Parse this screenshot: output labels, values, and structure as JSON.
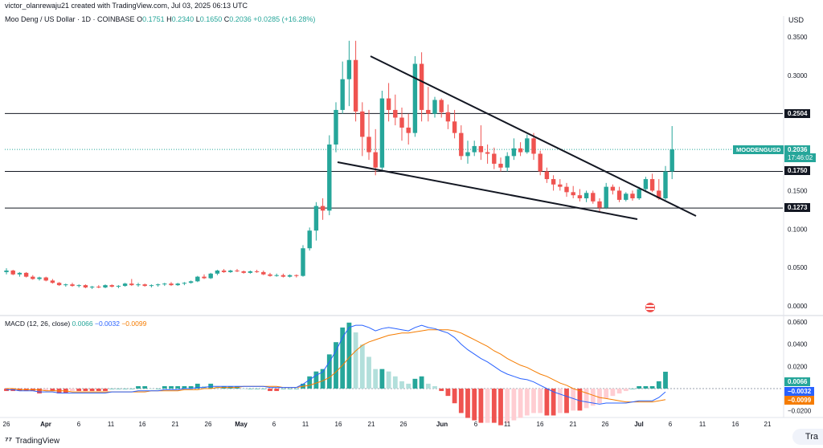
{
  "header": {
    "text": "victor_olanrewaju21 created with TradingView.com, Jul 03, 2025 06:13 UTC"
  },
  "legend": {
    "title": "Moo Deng / US Dollar · 1D · COINBASE",
    "o_label": "O",
    "o": "0.1751",
    "h_label": "H",
    "h": "0.2340",
    "l_label": "L",
    "l": "0.1650",
    "c_label": "C",
    "c": "0.2036",
    "change": "+0.0285 (+16.28%)"
  },
  "currency": "USD",
  "macd_legend": {
    "label": "MACD (12, 26, close)",
    "hist": "0.0066",
    "macd": "−0.0032",
    "signal": "−0.0099"
  },
  "footer": {
    "brand": "TradingView",
    "button": "Tra"
  },
  "tags": {
    "symbol": "MOODENGUSD",
    "price": "0.2036",
    "countdown": "17:46:02",
    "level1": "0.2504",
    "level2": "0.1750",
    "level3": "0.1273",
    "hist": "0.0066",
    "macd": "−0.0032",
    "signal": "−0.0099"
  },
  "colors": {
    "up": "#26a69a",
    "down": "#ef5350",
    "macd": "#2962ff",
    "signal": "#f57c00"
  },
  "chart_data": [
    {
      "type": "candlestick",
      "title": "Moo Deng / US Dollar · 1D · COINBASE",
      "ylabel": "USD",
      "ylim": [
        -0.02,
        0.36
      ],
      "yticks": [
        "0.3500",
        "0.3000",
        "0.2500",
        "0.2000",
        "0.1500",
        "0.1000",
        "0.0500",
        "0.0000"
      ],
      "xticks": [
        "26",
        "Apr",
        "6",
        "11",
        "16",
        "21",
        "26",
        "May",
        "6",
        "11",
        "16",
        "21",
        "26",
        "Jun",
        "6",
        "11",
        "16",
        "21",
        "26",
        "Jul",
        "6",
        "11",
        "16",
        "21"
      ],
      "horizontal_levels": [
        0.2504,
        0.175,
        0.1273
      ],
      "trendlines": [
        {
          "from": [
            "May 18",
            0.325
          ],
          "to": [
            "Jul 7",
            0.115
          ]
        },
        {
          "from": [
            "May 16",
            0.18
          ],
          "to": [
            "Jul 1",
            0.112
          ]
        }
      ],
      "last": {
        "open": 0.1751,
        "high": 0.234,
        "low": 0.165,
        "close": 0.2036,
        "change": 0.0285,
        "change_pct": 16.28
      },
      "candles": [
        {
          "o": 0.044,
          "h": 0.049,
          "l": 0.041,
          "c": 0.046
        },
        {
          "o": 0.046,
          "h": 0.047,
          "l": 0.04,
          "c": 0.041
        },
        {
          "o": 0.041,
          "h": 0.044,
          "l": 0.038,
          "c": 0.043
        },
        {
          "o": 0.043,
          "h": 0.044,
          "l": 0.037,
          "c": 0.038
        },
        {
          "o": 0.038,
          "h": 0.04,
          "l": 0.034,
          "c": 0.035
        },
        {
          "o": 0.035,
          "h": 0.038,
          "l": 0.033,
          "c": 0.037
        },
        {
          "o": 0.037,
          "h": 0.038,
          "l": 0.032,
          "c": 0.033
        },
        {
          "o": 0.033,
          "h": 0.035,
          "l": 0.029,
          "c": 0.03
        },
        {
          "o": 0.03,
          "h": 0.031,
          "l": 0.026,
          "c": 0.027
        },
        {
          "o": 0.027,
          "h": 0.029,
          "l": 0.025,
          "c": 0.028
        },
        {
          "o": 0.028,
          "h": 0.03,
          "l": 0.025,
          "c": 0.026
        },
        {
          "o": 0.026,
          "h": 0.028,
          "l": 0.024,
          "c": 0.027
        },
        {
          "o": 0.027,
          "h": 0.028,
          "l": 0.023,
          "c": 0.024
        },
        {
          "o": 0.024,
          "h": 0.026,
          "l": 0.022,
          "c": 0.025
        },
        {
          "o": 0.025,
          "h": 0.027,
          "l": 0.023,
          "c": 0.024
        },
        {
          "o": 0.024,
          "h": 0.028,
          "l": 0.023,
          "c": 0.027
        },
        {
          "o": 0.027,
          "h": 0.028,
          "l": 0.024,
          "c": 0.025
        },
        {
          "o": 0.025,
          "h": 0.027,
          "l": 0.023,
          "c": 0.026
        },
        {
          "o": 0.026,
          "h": 0.03,
          "l": 0.025,
          "c": 0.029
        },
        {
          "o": 0.029,
          "h": 0.035,
          "l": 0.026,
          "c": 0.027
        },
        {
          "o": 0.027,
          "h": 0.03,
          "l": 0.025,
          "c": 0.028
        },
        {
          "o": 0.028,
          "h": 0.029,
          "l": 0.025,
          "c": 0.026
        },
        {
          "o": 0.026,
          "h": 0.028,
          "l": 0.024,
          "c": 0.027
        },
        {
          "o": 0.027,
          "h": 0.029,
          "l": 0.025,
          "c": 0.028
        },
        {
          "o": 0.028,
          "h": 0.03,
          "l": 0.026,
          "c": 0.029
        },
        {
          "o": 0.029,
          "h": 0.031,
          "l": 0.026,
          "c": 0.027
        },
        {
          "o": 0.027,
          "h": 0.03,
          "l": 0.026,
          "c": 0.029
        },
        {
          "o": 0.029,
          "h": 0.031,
          "l": 0.027,
          "c": 0.03
        },
        {
          "o": 0.03,
          "h": 0.033,
          "l": 0.029,
          "c": 0.032
        },
        {
          "o": 0.032,
          "h": 0.039,
          "l": 0.031,
          "c": 0.038
        },
        {
          "o": 0.038,
          "h": 0.041,
          "l": 0.035,
          "c": 0.036
        },
        {
          "o": 0.036,
          "h": 0.043,
          "l": 0.035,
          "c": 0.042
        },
        {
          "o": 0.042,
          "h": 0.047,
          "l": 0.04,
          "c": 0.046
        },
        {
          "o": 0.046,
          "h": 0.048,
          "l": 0.043,
          "c": 0.044
        },
        {
          "o": 0.044,
          "h": 0.047,
          "l": 0.043,
          "c": 0.046
        },
        {
          "o": 0.046,
          "h": 0.048,
          "l": 0.044,
          "c": 0.045
        },
        {
          "o": 0.045,
          "h": 0.046,
          "l": 0.042,
          "c": 0.043
        },
        {
          "o": 0.043,
          "h": 0.046,
          "l": 0.042,
          "c": 0.045
        },
        {
          "o": 0.045,
          "h": 0.047,
          "l": 0.043,
          "c": 0.044
        },
        {
          "o": 0.044,
          "h": 0.046,
          "l": 0.04,
          "c": 0.041
        },
        {
          "o": 0.041,
          "h": 0.043,
          "l": 0.038,
          "c": 0.039
        },
        {
          "o": 0.039,
          "h": 0.042,
          "l": 0.038,
          "c": 0.04
        },
        {
          "o": 0.04,
          "h": 0.042,
          "l": 0.037,
          "c": 0.038
        },
        {
          "o": 0.038,
          "h": 0.041,
          "l": 0.037,
          "c": 0.04
        },
        {
          "o": 0.04,
          "h": 0.041,
          "l": 0.037,
          "c": 0.039
        },
        {
          "o": 0.039,
          "h": 0.079,
          "l": 0.038,
          "c": 0.075
        },
        {
          "o": 0.075,
          "h": 0.102,
          "l": 0.072,
          "c": 0.098
        },
        {
          "o": 0.098,
          "h": 0.135,
          "l": 0.085,
          "c": 0.13
        },
        {
          "o": 0.13,
          "h": 0.14,
          "l": 0.112,
          "c": 0.124
        },
        {
          "o": 0.124,
          "h": 0.222,
          "l": 0.118,
          "c": 0.21
        },
        {
          "o": 0.21,
          "h": 0.265,
          "l": 0.2,
          "c": 0.255
        },
        {
          "o": 0.255,
          "h": 0.318,
          "l": 0.25,
          "c": 0.295
        },
        {
          "o": 0.295,
          "h": 0.345,
          "l": 0.26,
          "c": 0.32
        },
        {
          "o": 0.32,
          "h": 0.345,
          "l": 0.24,
          "c": 0.253
        },
        {
          "o": 0.253,
          "h": 0.265,
          "l": 0.195,
          "c": 0.22
        },
        {
          "o": 0.22,
          "h": 0.255,
          "l": 0.19,
          "c": 0.2
        },
        {
          "o": 0.2,
          "h": 0.23,
          "l": 0.17,
          "c": 0.18
        },
        {
          "o": 0.18,
          "h": 0.28,
          "l": 0.175,
          "c": 0.27
        },
        {
          "o": 0.27,
          "h": 0.29,
          "l": 0.24,
          "c": 0.255
        },
        {
          "o": 0.255,
          "h": 0.275,
          "l": 0.235,
          "c": 0.245
        },
        {
          "o": 0.245,
          "h": 0.258,
          "l": 0.215,
          "c": 0.232
        },
        {
          "o": 0.232,
          "h": 0.25,
          "l": 0.21,
          "c": 0.225
        },
        {
          "o": 0.225,
          "h": 0.325,
          "l": 0.22,
          "c": 0.315
        },
        {
          "o": 0.315,
          "h": 0.33,
          "l": 0.24,
          "c": 0.255
        },
        {
          "o": 0.255,
          "h": 0.285,
          "l": 0.24,
          "c": 0.25
        },
        {
          "o": 0.25,
          "h": 0.272,
          "l": 0.245,
          "c": 0.268
        },
        {
          "o": 0.268,
          "h": 0.27,
          "l": 0.245,
          "c": 0.252
        },
        {
          "o": 0.252,
          "h": 0.262,
          "l": 0.23,
          "c": 0.24
        },
        {
          "o": 0.24,
          "h": 0.255,
          "l": 0.218,
          "c": 0.225
        },
        {
          "o": 0.225,
          "h": 0.235,
          "l": 0.19,
          "c": 0.195
        },
        {
          "o": 0.195,
          "h": 0.215,
          "l": 0.185,
          "c": 0.2
        },
        {
          "o": 0.2,
          "h": 0.215,
          "l": 0.195,
          "c": 0.208
        },
        {
          "o": 0.208,
          "h": 0.235,
          "l": 0.19,
          "c": 0.2
        },
        {
          "o": 0.2,
          "h": 0.21,
          "l": 0.185,
          "c": 0.198
        },
        {
          "o": 0.198,
          "h": 0.206,
          "l": 0.178,
          "c": 0.185
        },
        {
          "o": 0.185,
          "h": 0.193,
          "l": 0.175,
          "c": 0.18
        },
        {
          "o": 0.18,
          "h": 0.2,
          "l": 0.175,
          "c": 0.195
        },
        {
          "o": 0.195,
          "h": 0.218,
          "l": 0.19,
          "c": 0.205
        },
        {
          "o": 0.205,
          "h": 0.213,
          "l": 0.195,
          "c": 0.2
        },
        {
          "o": 0.2,
          "h": 0.223,
          "l": 0.198,
          "c": 0.218
        },
        {
          "o": 0.218,
          "h": 0.225,
          "l": 0.19,
          "c": 0.198
        },
        {
          "o": 0.198,
          "h": 0.202,
          "l": 0.17,
          "c": 0.175
        },
        {
          "o": 0.175,
          "h": 0.18,
          "l": 0.16,
          "c": 0.165
        },
        {
          "o": 0.165,
          "h": 0.17,
          "l": 0.15,
          "c": 0.158
        },
        {
          "o": 0.158,
          "h": 0.165,
          "l": 0.15,
          "c": 0.155
        },
        {
          "o": 0.155,
          "h": 0.16,
          "l": 0.142,
          "c": 0.148
        },
        {
          "o": 0.148,
          "h": 0.156,
          "l": 0.14,
          "c": 0.144
        },
        {
          "o": 0.144,
          "h": 0.152,
          "l": 0.136,
          "c": 0.14
        },
        {
          "o": 0.14,
          "h": 0.15,
          "l": 0.135,
          "c": 0.147
        },
        {
          "o": 0.147,
          "h": 0.15,
          "l": 0.133,
          "c": 0.136
        },
        {
          "o": 0.136,
          "h": 0.14,
          "l": 0.123,
          "c": 0.128
        },
        {
          "o": 0.128,
          "h": 0.16,
          "l": 0.126,
          "c": 0.155
        },
        {
          "o": 0.155,
          "h": 0.158,
          "l": 0.145,
          "c": 0.15
        },
        {
          "o": 0.15,
          "h": 0.155,
          "l": 0.135,
          "c": 0.138
        },
        {
          "o": 0.138,
          "h": 0.148,
          "l": 0.136,
          "c": 0.146
        },
        {
          "o": 0.146,
          "h": 0.15,
          "l": 0.137,
          "c": 0.14
        },
        {
          "o": 0.14,
          "h": 0.155,
          "l": 0.138,
          "c": 0.152
        },
        {
          "o": 0.152,
          "h": 0.168,
          "l": 0.148,
          "c": 0.165
        },
        {
          "o": 0.165,
          "h": 0.172,
          "l": 0.148,
          "c": 0.15
        },
        {
          "o": 0.15,
          "h": 0.165,
          "l": 0.138,
          "c": 0.14
        },
        {
          "o": 0.14,
          "h": 0.182,
          "l": 0.138,
          "c": 0.175
        },
        {
          "o": 0.1751,
          "h": 0.234,
          "l": 0.165,
          "c": 0.2036
        }
      ]
    },
    {
      "type": "macd",
      "title": "MACD (12, 26, close)",
      "ylim": [
        -0.022,
        0.064
      ],
      "yticks": [
        "0.0600",
        "0.0400",
        "0.0200",
        "−0.0200"
      ],
      "series": [
        {
          "name": "Histogram",
          "last": 0.0066
        },
        {
          "name": "MACD",
          "last": -0.0032
        },
        {
          "name": "Signal",
          "last": -0.0099
        }
      ],
      "macd_values": [
        -0.001,
        -0.001,
        -0.002,
        -0.002,
        -0.002,
        -0.003,
        -0.003,
        -0.003,
        -0.004,
        -0.004,
        -0.004,
        -0.004,
        -0.004,
        -0.004,
        -0.004,
        -0.004,
        -0.003,
        -0.003,
        -0.003,
        -0.003,
        -0.002,
        -0.002,
        -0.002,
        -0.002,
        -0.001,
        -0.001,
        -0.001,
        0.0,
        0.0,
        0.001,
        0.001,
        0.002,
        0.002,
        0.002,
        0.002,
        0.002,
        0.002,
        0.002,
        0.002,
        0.002,
        0.001,
        0.001,
        0.001,
        0.001,
        0.001,
        0.004,
        0.008,
        0.012,
        0.015,
        0.024,
        0.034,
        0.046,
        0.055,
        0.057,
        0.057,
        0.055,
        0.052,
        0.054,
        0.055,
        0.054,
        0.053,
        0.052,
        0.055,
        0.057,
        0.055,
        0.054,
        0.052,
        0.05,
        0.046,
        0.04,
        0.035,
        0.031,
        0.027,
        0.024,
        0.02,
        0.016,
        0.013,
        0.011,
        0.009,
        0.008,
        0.006,
        0.003,
        0.0,
        -0.003,
        -0.005,
        -0.007,
        -0.009,
        -0.011,
        -0.012,
        -0.013,
        -0.014,
        -0.013,
        -0.013,
        -0.013,
        -0.013,
        -0.012,
        -0.011,
        -0.011,
        -0.011,
        -0.008,
        -0.003
      ],
      "signal_values": [
        0.0,
        0.0,
        -0.001,
        -0.001,
        -0.001,
        -0.001,
        -0.002,
        -0.002,
        -0.002,
        -0.002,
        -0.003,
        -0.003,
        -0.003,
        -0.003,
        -0.003,
        -0.003,
        -0.003,
        -0.003,
        -0.003,
        -0.003,
        -0.003,
        -0.003,
        -0.002,
        -0.002,
        -0.002,
        -0.002,
        -0.002,
        -0.001,
        -0.001,
        -0.001,
        0.0,
        0.0,
        0.001,
        0.001,
        0.001,
        0.001,
        0.002,
        0.002,
        0.002,
        0.002,
        0.002,
        0.002,
        0.001,
        0.001,
        0.001,
        0.002,
        0.003,
        0.005,
        0.007,
        0.01,
        0.015,
        0.021,
        0.028,
        0.034,
        0.039,
        0.042,
        0.044,
        0.046,
        0.048,
        0.049,
        0.05,
        0.05,
        0.051,
        0.052,
        0.053,
        0.053,
        0.053,
        0.053,
        0.052,
        0.05,
        0.047,
        0.044,
        0.041,
        0.038,
        0.034,
        0.031,
        0.027,
        0.024,
        0.021,
        0.019,
        0.016,
        0.013,
        0.011,
        0.008,
        0.005,
        0.003,
        0.0,
        -0.002,
        -0.004,
        -0.006,
        -0.008,
        -0.009,
        -0.01,
        -0.011,
        -0.012,
        -0.012,
        -0.012,
        -0.012,
        -0.012,
        -0.011,
        -0.0099
      ]
    }
  ]
}
